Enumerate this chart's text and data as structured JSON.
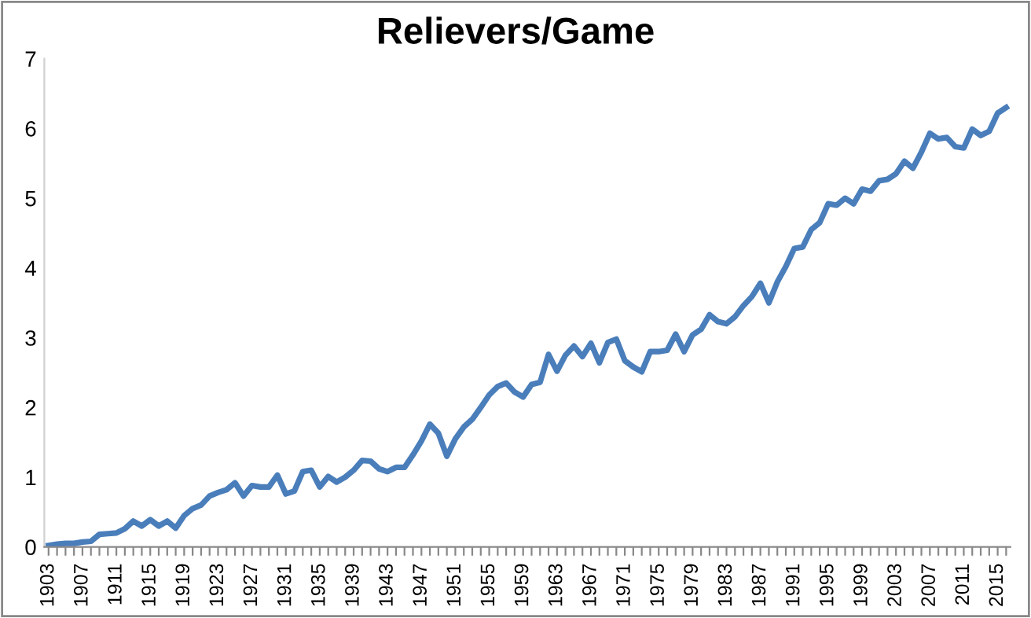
{
  "chart_data": {
    "type": "line",
    "title": "Relievers/Game",
    "categories": [
      "1903",
      null,
      null,
      null,
      "1907",
      null,
      null,
      null,
      "1911",
      null,
      null,
      null,
      "1915",
      null,
      null,
      null,
      "1919",
      null,
      null,
      null,
      "1923",
      null,
      null,
      null,
      "1927",
      null,
      null,
      null,
      "1931",
      null,
      null,
      null,
      "1935",
      null,
      null,
      null,
      "1939",
      null,
      null,
      null,
      "1943",
      null,
      null,
      null,
      "1947",
      null,
      null,
      null,
      "1951",
      null,
      null,
      null,
      "1955",
      null,
      null,
      null,
      "1959",
      null,
      null,
      null,
      "1963",
      null,
      null,
      null,
      "1967",
      null,
      null,
      null,
      "1971",
      null,
      null,
      null,
      "1975",
      null,
      null,
      null,
      "1979",
      null,
      null,
      null,
      "1983",
      null,
      null,
      null,
      "1987",
      null,
      null,
      null,
      "1991",
      null,
      null,
      null,
      "1995",
      null,
      null,
      null,
      "1999",
      null,
      null,
      null,
      "2003",
      null,
      null,
      null,
      "2007",
      null,
      null,
      null,
      "2011",
      null,
      null,
      null,
      "2015",
      null
    ],
    "series": [
      {
        "color": "#4a7ebb",
        "values": [
          0.02,
          0.04,
          0.05,
          0.05,
          0.07,
          0.08,
          0.18,
          0.19,
          0.2,
          0.26,
          0.37,
          0.3,
          0.39,
          0.3,
          0.37,
          0.27,
          0.45,
          0.55,
          0.6,
          0.73,
          0.78,
          0.82,
          0.92,
          0.73,
          0.88,
          0.86,
          0.86,
          1.03,
          0.76,
          0.8,
          1.08,
          1.1,
          0.86,
          1.01,
          0.93,
          1.0,
          1.1,
          1.24,
          1.23,
          1.12,
          1.08,
          1.14,
          1.14,
          1.32,
          1.52,
          1.76,
          1.63,
          1.3,
          1.55,
          1.72,
          1.83,
          2.0,
          2.18,
          2.3,
          2.35,
          2.22,
          2.15,
          2.33,
          2.36,
          2.76,
          2.52,
          2.75,
          2.88,
          2.73,
          2.92,
          2.64,
          2.93,
          2.98,
          2.67,
          2.58,
          2.51,
          2.8,
          2.8,
          2.82,
          3.05,
          2.8,
          3.04,
          3.12,
          3.33,
          3.23,
          3.2,
          3.3,
          3.46,
          3.59,
          3.78,
          3.5,
          3.8,
          4.02,
          4.28,
          4.3,
          4.55,
          4.65,
          4.92,
          4.9,
          5.0,
          4.92,
          5.13,
          5.1,
          5.25,
          5.27,
          5.35,
          5.53,
          5.43,
          5.66,
          5.93,
          5.85,
          5.87,
          5.74,
          5.72,
          5.99,
          5.9,
          5.96,
          6.22,
          6.3
        ]
      }
    ],
    "ylim": [
      0,
      7
    ],
    "yticks": [
      0,
      1,
      2,
      3,
      4,
      5,
      6,
      7
    ],
    "grid": false,
    "marker": "none",
    "line_style": "solid"
  }
}
